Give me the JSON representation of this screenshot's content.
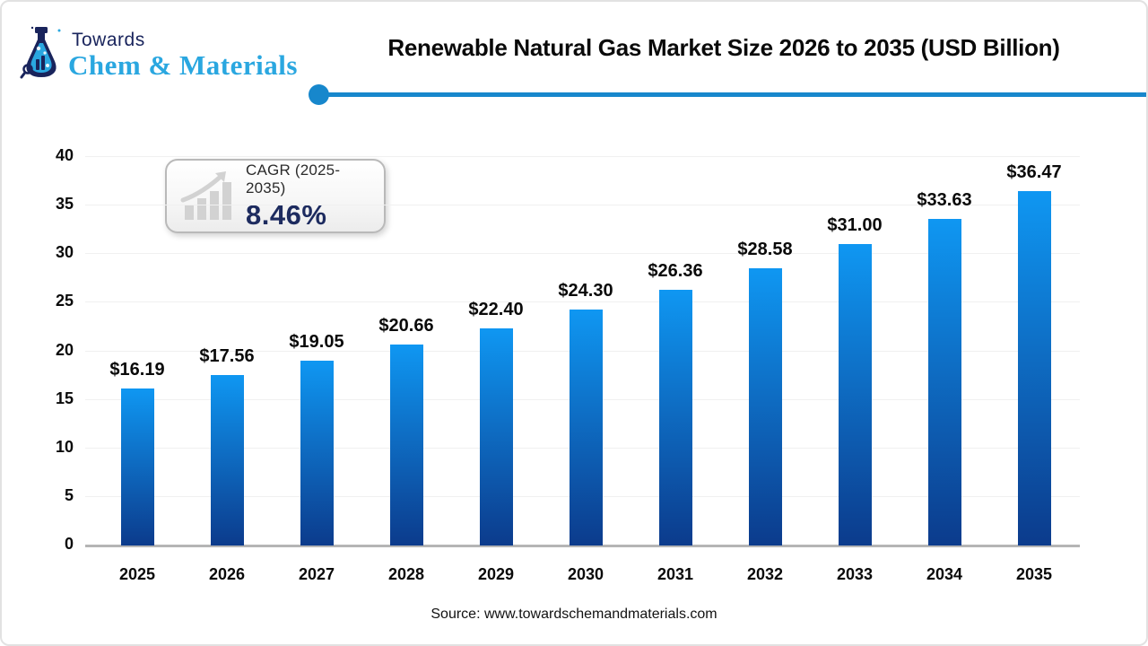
{
  "page": {
    "logo": {
      "towards": "Towards",
      "brand": "Chem & Materials"
    },
    "title": "Renewable Natural Gas Market Size 2026 to 2035 (USD Billion)",
    "source": "Source: www.towardschemandmaterials.com"
  },
  "cagr_badge": {
    "label": "CAGR (2025-2035)",
    "value": "8.46%"
  },
  "colors": {
    "accent_line": "#1787cc",
    "bar_top": "#0f97f2",
    "bar_bottom": "#0c3b8c",
    "brand_navy": "#19245c",
    "brand_blue": "#2aa7e0",
    "cagr_value": "#1d2b5f"
  },
  "chart_data": {
    "type": "bar",
    "title": "Renewable Natural Gas Market Size 2026 to 2035 (USD Billion)",
    "categories": [
      "2025",
      "2026",
      "2027",
      "2028",
      "2029",
      "2030",
      "2031",
      "2032",
      "2033",
      "2034",
      "2035"
    ],
    "values": [
      16.19,
      17.56,
      19.05,
      20.66,
      22.4,
      24.3,
      26.36,
      28.58,
      31.0,
      33.63,
      36.47
    ],
    "bar_labels": [
      "$16.19",
      "$17.56",
      "$19.05",
      "$20.66",
      "$22.40",
      "$24.30",
      "$26.36",
      "$28.58",
      "$31.00",
      "$33.63",
      "$36.47"
    ],
    "xlabel": "",
    "ylabel": "",
    "ylim": [
      0,
      40
    ],
    "yticks": [
      0,
      5,
      10,
      15,
      20,
      25,
      30,
      35,
      40
    ],
    "grid": true,
    "legend": false
  }
}
